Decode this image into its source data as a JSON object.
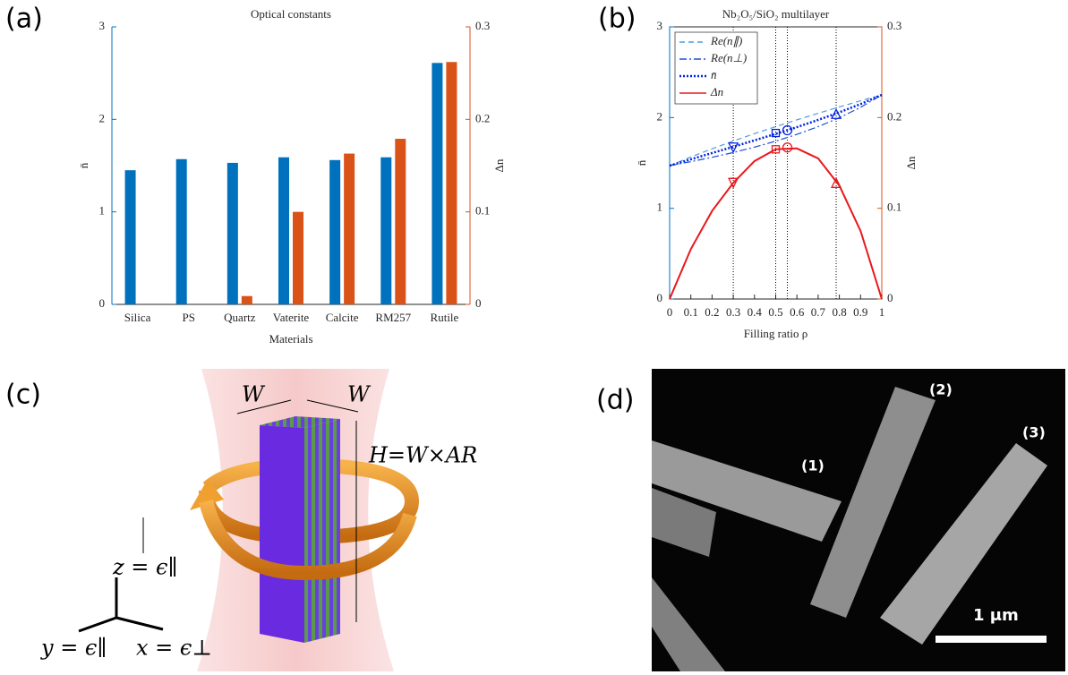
{
  "panels": [
    "(a)",
    "(b)",
    "(c)",
    "(d)"
  ],
  "chart_data": [
    {
      "type": "bar",
      "title": "Optical constants",
      "xlabel": "Materials",
      "ylabel": "n̄",
      "y2label": "Δn",
      "categories": [
        "Silica",
        "PS",
        "Quartz",
        "Vaterite",
        "Calcite",
        "RM257",
        "Rutile"
      ],
      "series": [
        {
          "color": "#0072bd",
          "values": [
            1.45,
            1.57,
            1.53,
            1.59,
            1.56,
            1.59,
            2.61
          ]
        },
        {
          "color": "#d95319",
          "axis": "y2",
          "values": [
            0,
            0,
            0.009,
            0.1,
            0.163,
            0.179,
            0.262
          ]
        }
      ],
      "ylim": [
        0,
        3
      ],
      "yticks": [
        0,
        1,
        2,
        3
      ],
      "y2lim": [
        0,
        0.3
      ],
      "y2ticks": [
        0,
        0.1,
        0.2,
        0.3
      ],
      "ycolor": "#0072bd",
      "y2color": "#d95319"
    },
    {
      "type": "line",
      "title": "Nb₂O₅/SiO₂ multilayer",
      "xlabel": "Filling ratio ρ",
      "ylabel": "n̄",
      "y2label": "Δn",
      "x": [
        0,
        0.1,
        0.2,
        0.3,
        0.4,
        0.5,
        0.6,
        0.7,
        0.8,
        0.9,
        1
      ],
      "series": [
        {
          "name": "Re(n∥)",
          "color": "#4d9de0",
          "dash": "dashed",
          "values": [
            1.47,
            1.566,
            1.656,
            1.741,
            1.823,
            1.9,
            1.975,
            2.047,
            2.117,
            2.185,
            2.25
          ]
        },
        {
          "name": "Re(n⊥)",
          "color": "#1f4fd6",
          "dash": "dashdot",
          "values": [
            1.47,
            1.514,
            1.562,
            1.615,
            1.674,
            1.74,
            1.815,
            1.9,
            1.998,
            2.113,
            2.25
          ]
        },
        {
          "name": "n̄",
          "color": "#0022e0",
          "dash": "dotted",
          "values": [
            1.47,
            1.54,
            1.609,
            1.678,
            1.749,
            1.82,
            1.895,
            1.974,
            2.058,
            2.149,
            2.25
          ]
        },
        {
          "name": "Δn",
          "color": "#e8181c",
          "dash": "solid",
          "axis": "y2",
          "values": [
            0,
            0.055,
            0.097,
            0.128,
            0.152,
            0.165,
            0.166,
            0.155,
            0.125,
            0.075,
            0
          ]
        }
      ],
      "markers": {
        "x": [
          0.3,
          0.5,
          0.555,
          0.785
        ],
        "shapes": [
          "triangle-down",
          "square",
          "circle",
          "triangle-up"
        ],
        "series": [
          {
            "color": "#0022e0",
            "values": [
              1.67,
              1.83,
              1.86,
              2.04
            ]
          },
          {
            "color": "#e8181c",
            "axis": "y2",
            "values": [
              0.128,
              0.165,
              0.167,
              0.128
            ]
          }
        ]
      },
      "vlines": [
        0.3,
        0.5,
        0.555,
        0.785
      ],
      "xlim": [
        0,
        1
      ],
      "xticks": [
        0,
        0.1,
        0.2,
        0.3,
        0.4,
        0.5,
        0.6,
        0.7,
        0.8,
        0.9,
        1
      ],
      "ylim": [
        0,
        3
      ],
      "yticks": [
        0,
        1,
        2,
        3
      ],
      "y2lim": [
        0,
        0.3
      ],
      "y2ticks": [
        0,
        0.1,
        0.2,
        0.3
      ],
      "ycolor": "#0072bd",
      "y2color": "#d95319",
      "legend": "top-left"
    }
  ],
  "diagram": {
    "labels": [
      "W",
      "W",
      "H=W×AR",
      "z = ϵ∥",
      "y = ϵ∥",
      "x = ϵ⊥"
    ]
  },
  "image": {
    "labels": [
      "(1)",
      "(2)",
      "(3)",
      "1 μm"
    ]
  }
}
